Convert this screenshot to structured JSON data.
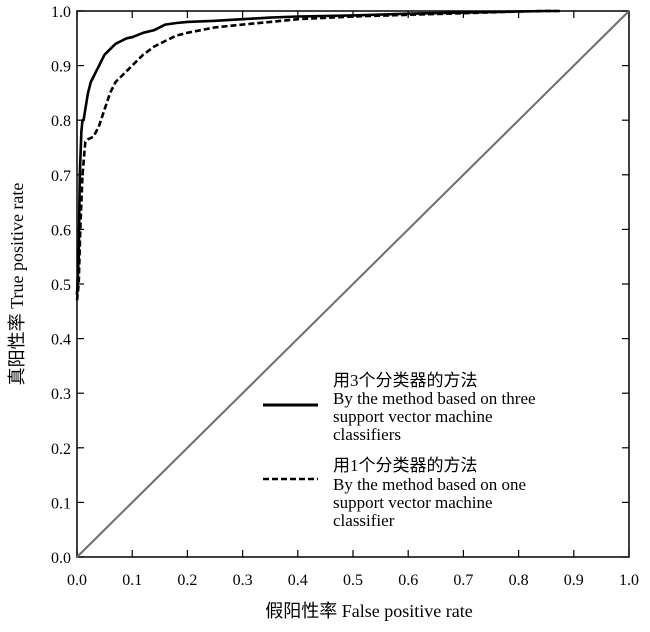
{
  "chart_data": {
    "type": "line",
    "xlabel": "假阳性率 False positive rate",
    "ylabel": "真阳性率 True positive rate",
    "xlim": [
      0,
      1
    ],
    "ylim": [
      0,
      1
    ],
    "x_ticks": [
      "0.0",
      "0.1",
      "0.2",
      "0.3",
      "0.4",
      "0.5",
      "0.6",
      "0.7",
      "0.8",
      "0.9",
      "1.0"
    ],
    "y_ticks": [
      "0.0",
      "0.1",
      "0.2",
      "0.3",
      "0.4",
      "0.5",
      "0.6",
      "0.7",
      "0.8",
      "0.9",
      "1.0"
    ],
    "grid": false,
    "legend_position": "lower-right",
    "series": [
      {
        "name": "用3个分类器的方法 By the method based on three support vector machine classifiers",
        "legend_lines": [
          "用3个分类器的方法",
          "By the method based on three",
          "support vector machine",
          "classifiers"
        ],
        "style": "solid",
        "x": [
          0,
          0.003,
          0.005,
          0.008,
          0.01,
          0.012,
          0.015,
          0.02,
          0.025,
          0.03,
          0.035,
          0.04,
          0.045,
          0.05,
          0.06,
          0.07,
          0.08,
          0.09,
          0.1,
          0.12,
          0.14,
          0.16,
          0.18,
          0.2,
          0.25,
          0.3,
          0.35,
          0.4,
          0.5,
          0.6,
          0.7,
          0.8,
          0.85,
          0.87
        ],
        "y": [
          0.48,
          0.55,
          0.7,
          0.78,
          0.8,
          0.8,
          0.82,
          0.85,
          0.87,
          0.88,
          0.89,
          0.9,
          0.91,
          0.92,
          0.93,
          0.94,
          0.945,
          0.95,
          0.952,
          0.96,
          0.965,
          0.975,
          0.978,
          0.98,
          0.982,
          0.985,
          0.988,
          0.99,
          0.992,
          0.995,
          0.997,
          0.999,
          1.0,
          1.0
        ]
      },
      {
        "name": "用1个分类器的方法 By the method based on one support vector machine classifier",
        "legend_lines": [
          "用1个分类器的方法",
          "By the method based on one",
          "support vector machine",
          "classifier"
        ],
        "style": "dashed",
        "x": [
          0,
          0.003,
          0.006,
          0.01,
          0.015,
          0.02,
          0.03,
          0.04,
          0.05,
          0.06,
          0.07,
          0.08,
          0.1,
          0.12,
          0.14,
          0.16,
          0.18,
          0.2,
          0.25,
          0.3,
          0.35,
          0.4,
          0.5,
          0.6,
          0.7,
          0.8,
          0.85,
          0.88
        ],
        "y": [
          0.47,
          0.5,
          0.6,
          0.7,
          0.76,
          0.765,
          0.77,
          0.79,
          0.82,
          0.85,
          0.87,
          0.88,
          0.9,
          0.92,
          0.935,
          0.945,
          0.955,
          0.96,
          0.97,
          0.975,
          0.98,
          0.985,
          0.99,
          0.993,
          0.996,
          0.999,
          1.0,
          1.0
        ]
      },
      {
        "name": "",
        "style": "diagonal",
        "x": [
          0,
          1
        ],
        "y": [
          0,
          1
        ]
      }
    ]
  }
}
